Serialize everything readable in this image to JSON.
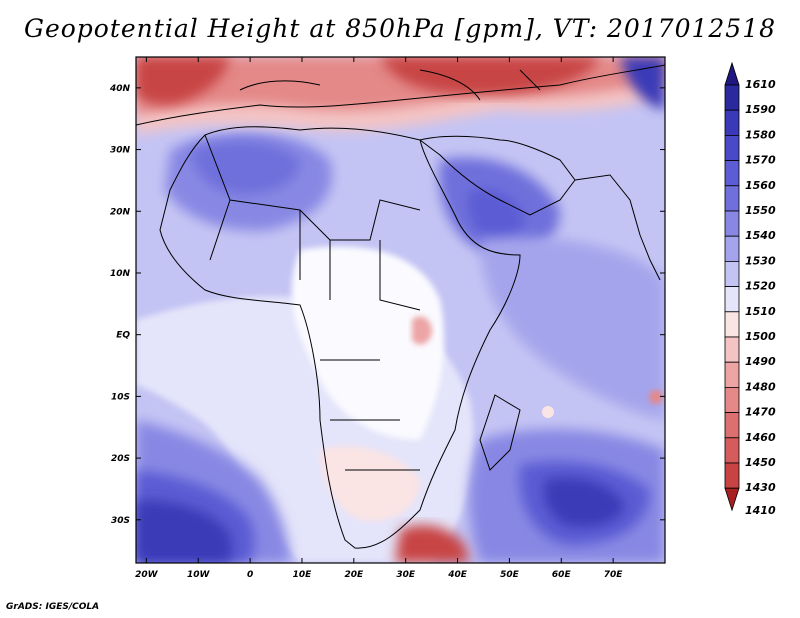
{
  "title": "Geopotential Height at 850hPa [gpm], VT: 2017012518",
  "credit": "GrADS: IGES/COLA",
  "map": {
    "lat_labels": [
      "40N",
      "30N",
      "20N",
      "10N",
      "EQ",
      "10S",
      "20S",
      "30S"
    ],
    "lat_values": [
      40,
      30,
      20,
      10,
      0,
      -10,
      -20,
      -30
    ],
    "lon_labels": [
      "20W",
      "10W",
      "0",
      "10E",
      "20E",
      "30E",
      "40E",
      "50E",
      "60E",
      "70E"
    ],
    "lon_values": [
      -20,
      -10,
      0,
      10,
      20,
      30,
      40,
      50,
      60,
      70
    ],
    "lon_range": [
      -22,
      80
    ],
    "lat_range": [
      -37,
      45
    ]
  },
  "colorbar": {
    "top_label": "1610",
    "labels": [
      "1590",
      "1580",
      "1570",
      "1560",
      "1550",
      "1540",
      "1530",
      "1520",
      "1510",
      "1500",
      "1490",
      "1480",
      "1470",
      "1460",
      "1450",
      "1430"
    ],
    "bottom_label": "1410",
    "colors": {
      "c1610": "#201880",
      "c1590": "#2a2a9e",
      "c1580": "#3a3ab8",
      "c1570": "#4a4ac8",
      "c1560": "#5c5cd4",
      "c1550": "#7070dc",
      "c1540": "#8888e4",
      "c1530": "#a4a4ec",
      "c1520": "#c4c4f4",
      "c1510": "#e4e4fa",
      "c1500": "#fae4e4",
      "c1490": "#f4c4c4",
      "c1480": "#eca4a4",
      "c1470": "#e48888",
      "c1460": "#dc7070",
      "c1450": "#d45c5c",
      "c1430": "#c84444",
      "c1410": "#a82020"
    }
  }
}
